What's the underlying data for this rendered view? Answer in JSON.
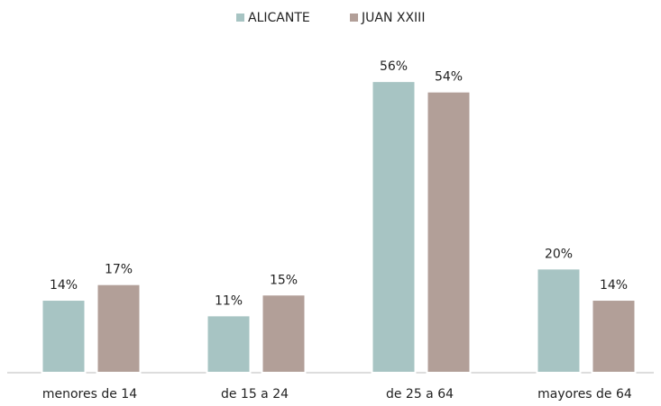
{
  "chart_data": {
    "type": "bar",
    "categories": [
      "menores de 14",
      "de 15 a 24",
      "de 25 a 64",
      "mayores de 64"
    ],
    "series": [
      {
        "name": "ALICANTE",
        "color": "#a7c4c3",
        "values": [
          14,
          11,
          56,
          20
        ],
        "value_labels": [
          "14%",
          "11%",
          "56%",
          "20%"
        ]
      },
      {
        "name": "JUAN XXIII",
        "color": "#b29f98",
        "values": [
          17,
          15,
          54,
          14
        ],
        "value_labels": [
          "17%",
          "15%",
          "54%",
          "14%"
        ]
      }
    ],
    "ylim": [
      0,
      60
    ],
    "legend": "top"
  }
}
